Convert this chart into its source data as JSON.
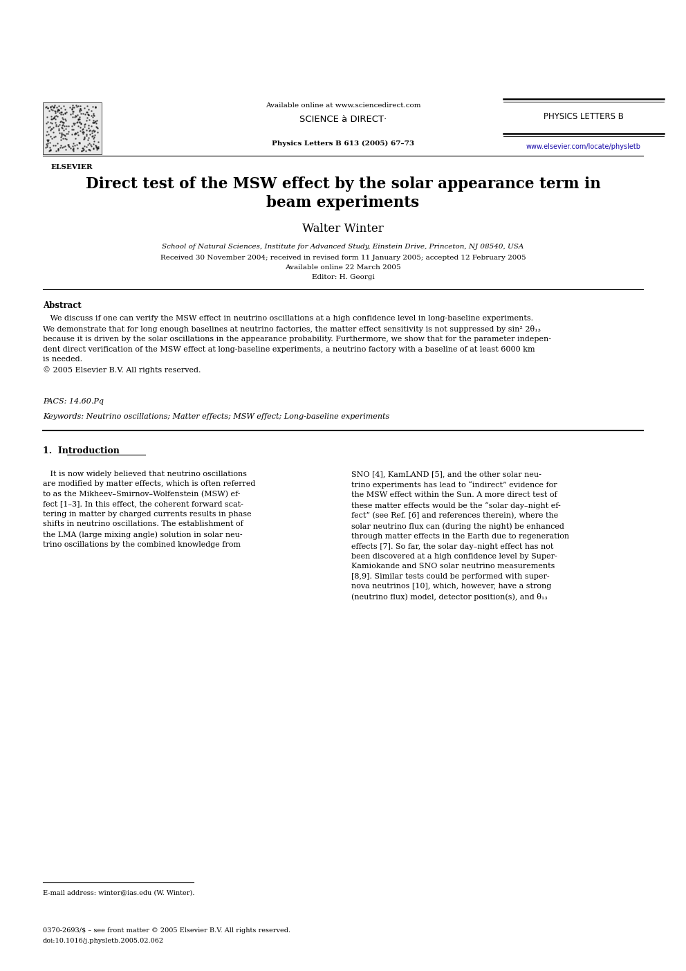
{
  "bg_color": "#ffffff",
  "page_width": 9.92,
  "page_height": 14.03,
  "dpi": 100,
  "header_available_online": "Available online at www.sciencedirect.com",
  "header_sciencedirect": "SCIENCE à DIRECT·",
  "header_citation": "Physics Letters B 613 (2005) 67–73",
  "header_journal": "PHYSICS LETTERS B",
  "header_url": "www.elsevier.com/locate/physletb",
  "header_elsevier": "ELSEVIER",
  "title_line1": "Direct test of the MSW effect by the solar appearance term in",
  "title_line2": "beam experiments",
  "author": "Walter Winter",
  "affiliation": "School of Natural Sciences, Institute for Advanced Study, Einstein Drive, Princeton, NJ 08540, USA",
  "received": "Received 30 November 2004; received in revised form 11 January 2005; accepted 12 February 2005",
  "available_online_date": "Available online 22 March 2005",
  "editor": "Editor: H. Georgi",
  "abstract_title": "Abstract",
  "abstract_indent": "   We discuss if one can verify the MSW effect in neutrino oscillations at a high confidence level in long-baseline experiments.\nWe demonstrate that for long enough baselines at neutrino factories, the matter effect sensitivity is not suppressed by sin² 2θ₁₃\nbecause it is driven by the solar oscillations in the appearance probability. Furthermore, we show that for the parameter indepen-\ndent direct verification of the MSW effect at long-baseline experiments, a neutrino factory with a baseline of at least 6000 km\nis needed.\n© 2005 Elsevier B.V. All rights reserved.",
  "pacs": "PACS: 14.60.Pq",
  "keywords": "Keywords: Neutrino oscillations; Matter effects; MSW effect; Long-baseline experiments",
  "section1": "1.  Introduction",
  "col_left": "   It is now widely believed that neutrino oscillations\nare modified by matter effects, which is often referred\nto as the Mikheev–Smirnov–Wolfenstein (MSW) ef-\nfect [1–3]. In this effect, the coherent forward scat-\ntering in matter by charged currents results in phase\nshifts in neutrino oscillations. The establishment of\nthe LMA (large mixing angle) solution in solar neu-\ntrino oscillations by the combined knowledge from",
  "col_right": "SNO [4], KamLAND [5], and the other solar neu-\ntrino experiments has lead to “indirect” evidence for\nthe MSW effect within the Sun. A more direct test of\nthese matter effects would be the “solar day–night ef-\nfect” (see Ref. [6] and references therein), where the\nsolar neutrino flux can (during the night) be enhanced\nthrough matter effects in the Earth due to regeneration\neffects [7]. So far, the solar day–night effect has not\nbeen discovered at a high confidence level by Super-\nKamiokande and SNO solar neutrino measurements\n[8,9]. Similar tests could be performed with super-\nnova neutrinos [10], which, however, have a strong\n(neutrino flux) model, detector position(s), and θ₁₃",
  "footnote_email": "E-mail address: winter@ias.edu (W. Winter).",
  "footer_line1": "0370-2693/$ – see front matter © 2005 Elsevier B.V. All rights reserved.",
  "footer_line2": "doi:10.1016/j.physletb.2005.02.062"
}
